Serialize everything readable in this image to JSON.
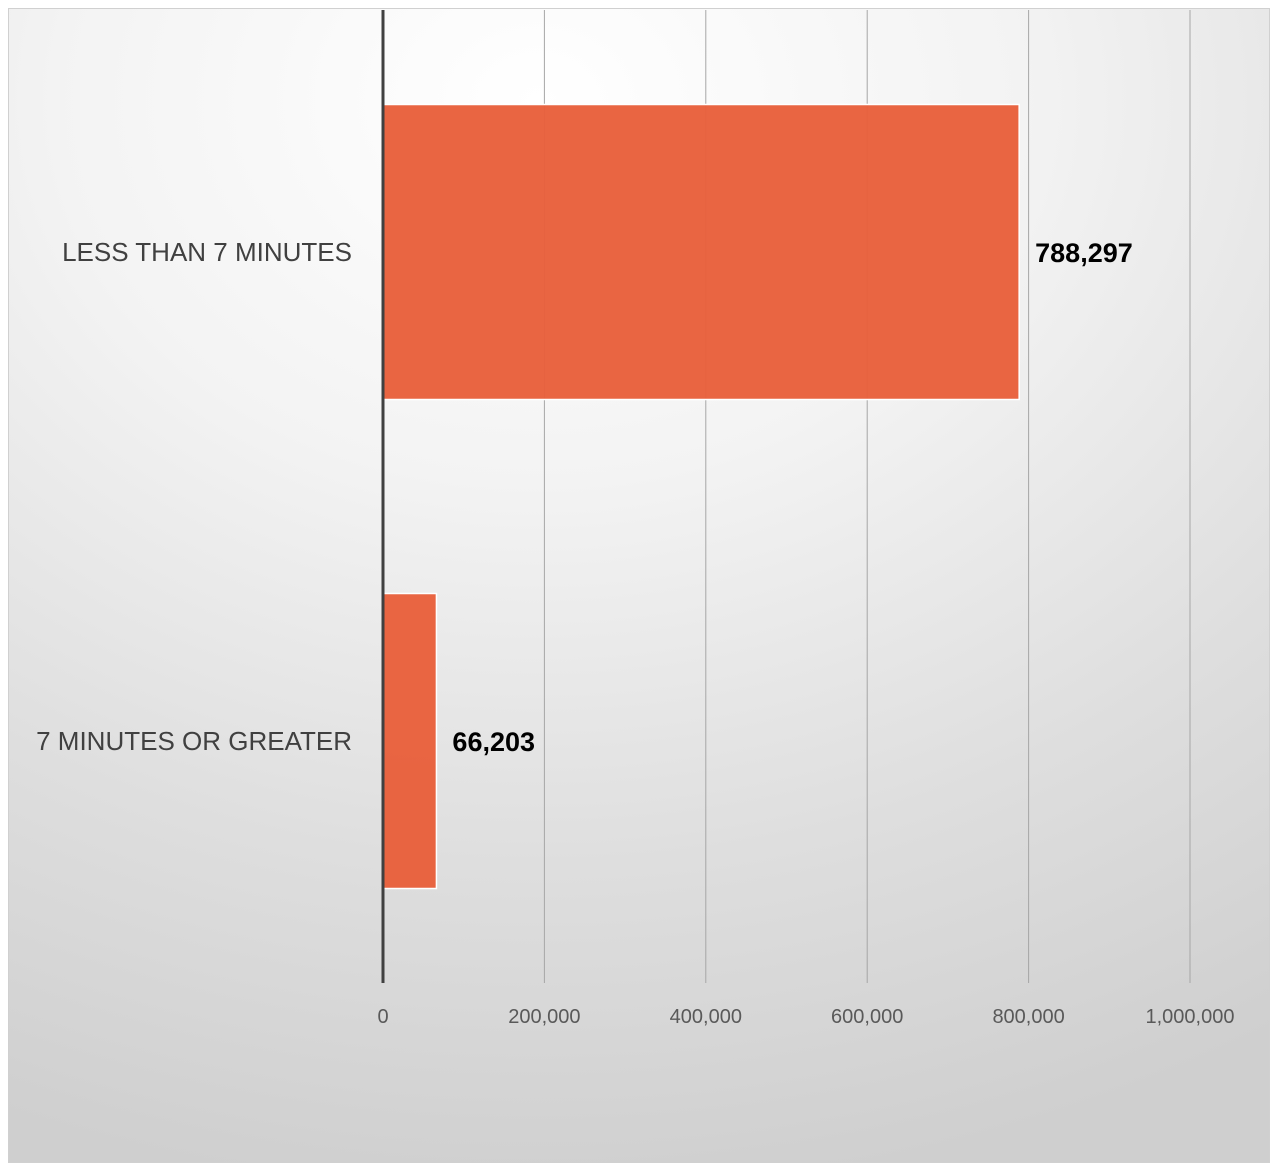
{
  "chart_data": {
    "type": "bar",
    "orientation": "horizontal",
    "categories": [
      "LESS THAN 7 MINUTES",
      "7 MINUTES OR GREATER"
    ],
    "values": [
      788297,
      66203
    ],
    "value_labels": [
      "788,297",
      "66,203"
    ],
    "x_ticks": [
      0,
      200000,
      400000,
      600000,
      800000,
      1000000
    ],
    "x_tick_labels": [
      "0",
      "200,000",
      "400,000",
      "600,000",
      "800,000",
      "1,000,000"
    ],
    "xlim": [
      0,
      1000000
    ],
    "title": "",
    "xlabel": "",
    "ylabel": "",
    "grid": "vertical",
    "legend": "none",
    "bar_color": "#E8603C",
    "bar_edge_color": "#FFFFFF",
    "gridline_color": "#A6A6A6",
    "axis_color": "#404040"
  }
}
